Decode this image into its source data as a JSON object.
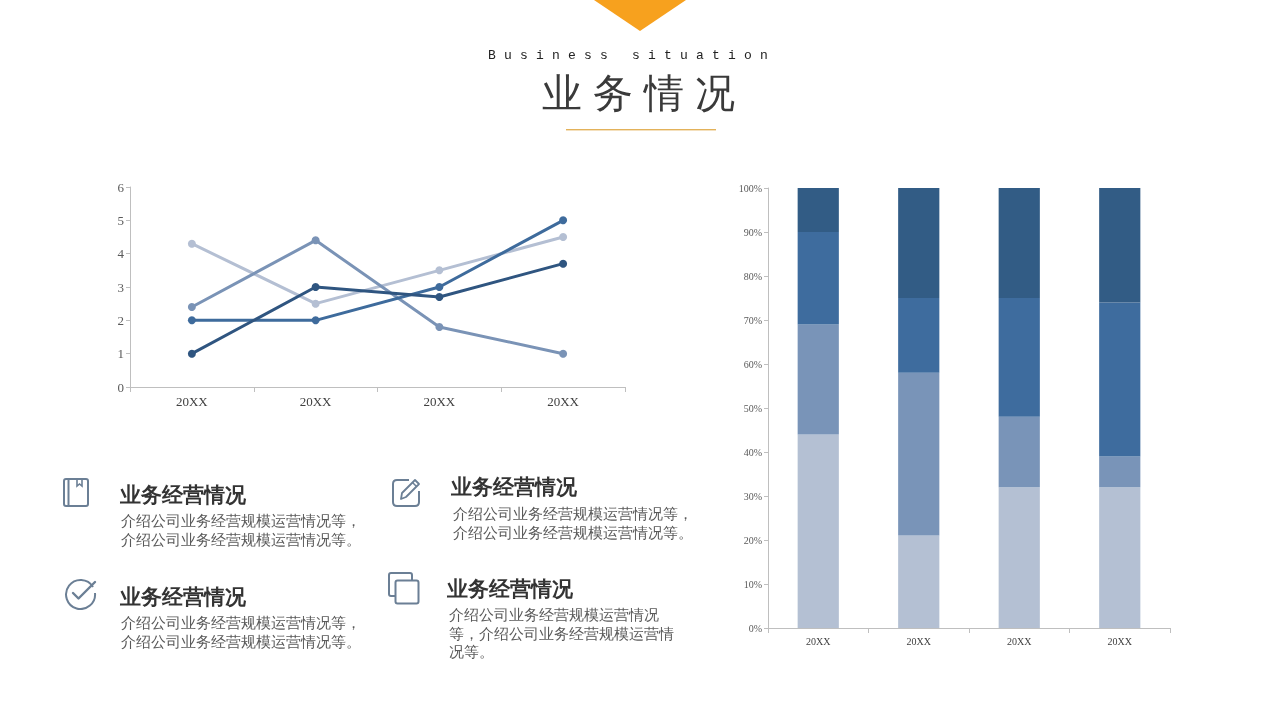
{
  "chart_data": [
    {
      "type": "other",
      "title": "业务情况",
      "subtitle": "Business situation"
    },
    {
      "type": "line",
      "categories": [
        "20XX",
        "20XX",
        "20XX",
        "20XX"
      ],
      "series": [
        {
          "color": "#b4bfd3",
          "values": [
            4.3,
            2.5,
            3.5,
            4.5
          ]
        },
        {
          "color": "#7a93b6",
          "values": [
            2.4,
            4.4,
            1.8,
            1.0
          ]
        },
        {
          "color": "#3e6b9c",
          "values": [
            2,
            2,
            3,
            5
          ]
        },
        {
          "color": "#2f5580",
          "values": [
            1,
            3,
            2.7,
            3.7
          ]
        }
      ],
      "ylim": [
        0,
        6
      ],
      "yticks": [
        0,
        1,
        2,
        3,
        4,
        5,
        6
      ],
      "marker": "circle",
      "line_style": "solid"
    },
    {
      "type": "bar",
      "stacked": true,
      "categories": [
        "20XX",
        "20XX",
        "20XX",
        "20XX"
      ],
      "series": [
        {
          "color": "#b4c0d3",
          "values": [
            44,
            21,
            32,
            32
          ]
        },
        {
          "color": "#7994b8",
          "values": [
            25,
            37,
            16,
            7
          ]
        },
        {
          "color": "#3e6c9e",
          "values": [
            21,
            17,
            27,
            35
          ]
        },
        {
          "color": "#325c85",
          "values": [
            10,
            25,
            25,
            26
          ]
        }
      ],
      "ylim": [
        0,
        100
      ],
      "yticks": [
        {
          "value": 0,
          "label": "0%"
        },
        {
          "value": 10,
          "label": "10%"
        },
        {
          "value": 20,
          "label": "20%"
        },
        {
          "value": 30,
          "label": "30%"
        },
        {
          "value": 40,
          "label": "40%"
        },
        {
          "value": 50,
          "label": "50%"
        },
        {
          "value": 60,
          "label": "60%"
        },
        {
          "value": 70,
          "label": "70%"
        },
        {
          "value": 80,
          "label": "80%"
        },
        {
          "value": 90,
          "label": "90%"
        },
        {
          "value": 100,
          "label": "100%"
        }
      ]
    },
    {
      "type": "other",
      "annotations": [
        "业务经营情况",
        "介绍公司业务经营规模运营情况等，介绍公司业务经营规模运营情况等。",
        "业务经营情况",
        "介绍公司业务经营规模运营情况等，介绍公司业务经营规模运营情况等。",
        "业务经营情况",
        "介绍公司业务经营规模运营情况等，介绍公司业务经营规模运营情况等。",
        "业务经营情况",
        "介绍公司业务经营规模运营情况等，介绍公司业务经营规模运营情况等。"
      ]
    }
  ]
}
